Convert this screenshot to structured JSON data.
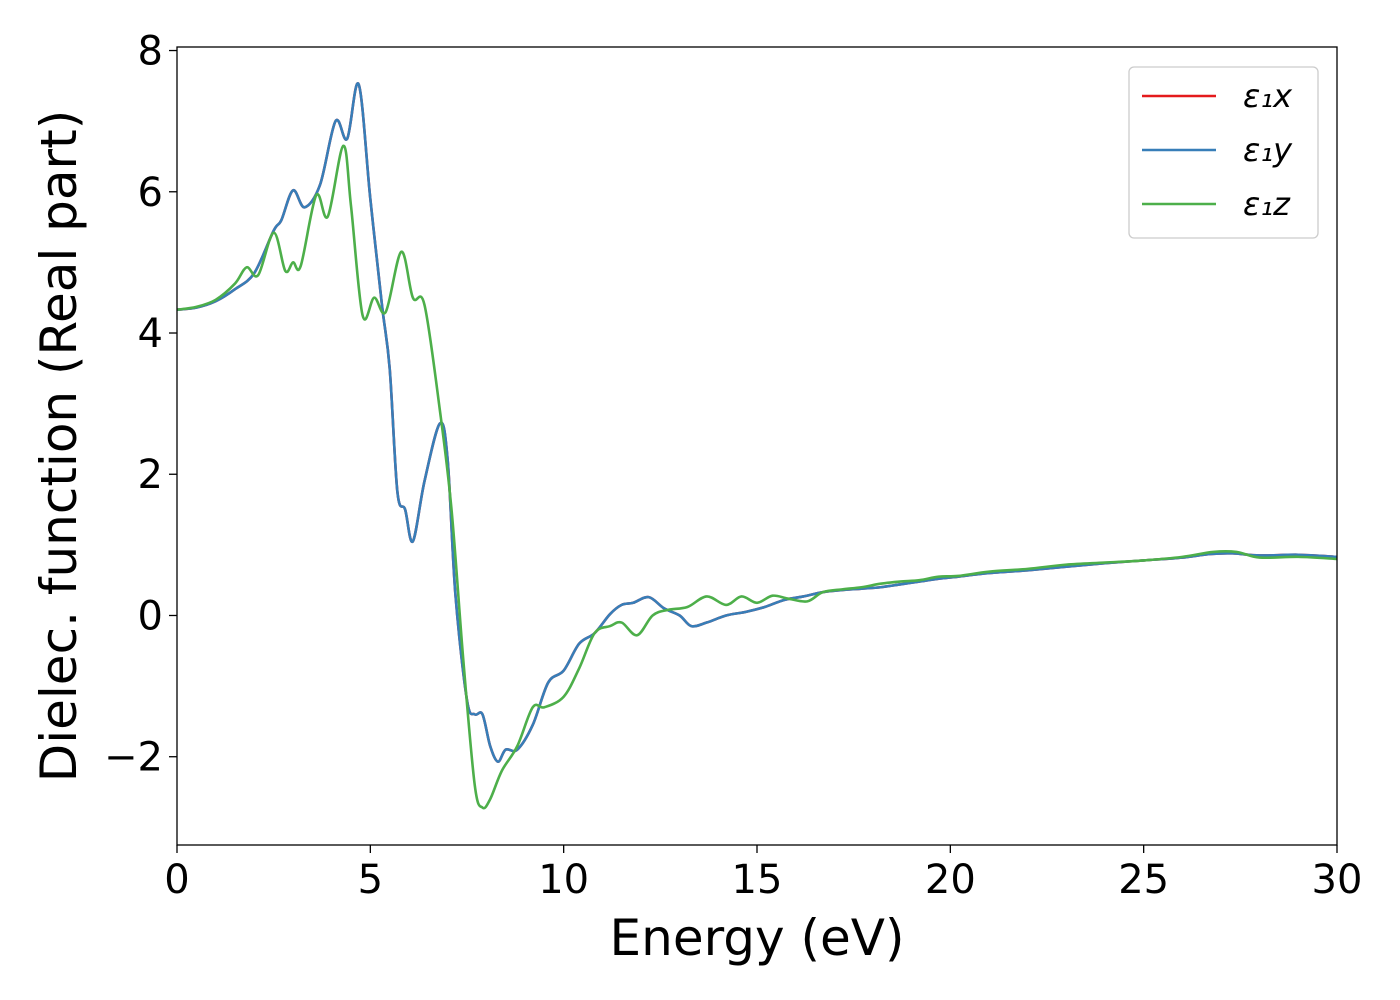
{
  "chart_data": {
    "type": "line",
    "xlabel": "Energy (eV)",
    "ylabel": "Dielec. function (Real part)",
    "xlim": [
      0,
      30
    ],
    "ylim": [
      -3.25,
      8.05
    ],
    "grid": false,
    "legend_placement": "top-right",
    "x_ticks": [
      0,
      5,
      10,
      15,
      20,
      25,
      30
    ],
    "x_tick_labels": [
      "0",
      "5",
      "10",
      "15",
      "20",
      "25",
      "30"
    ],
    "y_ticks": [
      -2,
      0,
      2,
      4,
      6,
      8
    ],
    "y_tick_labels": [
      "−2",
      "0",
      "2",
      "4",
      "6",
      "8"
    ],
    "series": [
      {
        "name": "ε₁x",
        "color": "#e41a1c",
        "points": [
          [
            0,
            4.33
          ],
          [
            0.5,
            4.36
          ],
          [
            1,
            4.45
          ],
          [
            1.5,
            4.62
          ],
          [
            2,
            4.85
          ],
          [
            2.5,
            5.45
          ],
          [
            2.7,
            5.6
          ],
          [
            3,
            6.02
          ],
          [
            3.3,
            5.78
          ],
          [
            3.7,
            6.1
          ],
          [
            4.1,
            7.0
          ],
          [
            4.4,
            6.75
          ],
          [
            4.7,
            7.52
          ],
          [
            5,
            5.9
          ],
          [
            5.3,
            4.4
          ],
          [
            5.5,
            3.5
          ],
          [
            5.7,
            1.75
          ],
          [
            5.9,
            1.5
          ],
          [
            6.1,
            1.05
          ],
          [
            6.4,
            1.9
          ],
          [
            6.8,
            2.72
          ],
          [
            7,
            2.2
          ],
          [
            7.2,
            0.3
          ],
          [
            7.5,
            -1.2
          ],
          [
            7.7,
            -1.4
          ],
          [
            7.9,
            -1.4
          ],
          [
            8.1,
            -1.85
          ],
          [
            8.3,
            -2.07
          ],
          [
            8.5,
            -1.9
          ],
          [
            8.8,
            -1.9
          ],
          [
            9.2,
            -1.55
          ],
          [
            9.6,
            -0.95
          ],
          [
            10,
            -0.78
          ],
          [
            10.4,
            -0.4
          ],
          [
            10.8,
            -0.25
          ],
          [
            11.2,
            0.02
          ],
          [
            11.5,
            0.15
          ],
          [
            11.8,
            0.18
          ],
          [
            12.2,
            0.26
          ],
          [
            12.6,
            0.1
          ],
          [
            13,
            0.0
          ],
          [
            13.3,
            -0.15
          ],
          [
            13.7,
            -0.1
          ],
          [
            14.2,
            0.0
          ],
          [
            14.7,
            0.05
          ],
          [
            15.2,
            0.12
          ],
          [
            15.7,
            0.22
          ],
          [
            16.2,
            0.27
          ],
          [
            16.7,
            0.33
          ],
          [
            17.2,
            0.36
          ],
          [
            17.7,
            0.38
          ],
          [
            18.2,
            0.4
          ],
          [
            18.7,
            0.44
          ],
          [
            19.2,
            0.48
          ],
          [
            19.7,
            0.52
          ],
          [
            20.2,
            0.55
          ],
          [
            21,
            0.6
          ],
          [
            22,
            0.64
          ],
          [
            23,
            0.69
          ],
          [
            24,
            0.74
          ],
          [
            25,
            0.78
          ],
          [
            26,
            0.82
          ],
          [
            26.7,
            0.87
          ],
          [
            27.3,
            0.88
          ],
          [
            28,
            0.85
          ],
          [
            29,
            0.86
          ],
          [
            30,
            0.83
          ]
        ]
      },
      {
        "name": "ε₁y",
        "color": "#377eb8",
        "points": [
          [
            0,
            4.33
          ],
          [
            0.5,
            4.36
          ],
          [
            1,
            4.45
          ],
          [
            1.5,
            4.62
          ],
          [
            2,
            4.85
          ],
          [
            2.5,
            5.45
          ],
          [
            2.7,
            5.6
          ],
          [
            3,
            6.02
          ],
          [
            3.3,
            5.78
          ],
          [
            3.7,
            6.1
          ],
          [
            4.1,
            7.0
          ],
          [
            4.4,
            6.75
          ],
          [
            4.7,
            7.52
          ],
          [
            5,
            5.9
          ],
          [
            5.3,
            4.4
          ],
          [
            5.5,
            3.5
          ],
          [
            5.7,
            1.75
          ],
          [
            5.9,
            1.5
          ],
          [
            6.1,
            1.05
          ],
          [
            6.4,
            1.9
          ],
          [
            6.8,
            2.72
          ],
          [
            7,
            2.2
          ],
          [
            7.2,
            0.3
          ],
          [
            7.5,
            -1.2
          ],
          [
            7.7,
            -1.4
          ],
          [
            7.9,
            -1.4
          ],
          [
            8.1,
            -1.85
          ],
          [
            8.3,
            -2.07
          ],
          [
            8.5,
            -1.9
          ],
          [
            8.8,
            -1.9
          ],
          [
            9.2,
            -1.55
          ],
          [
            9.6,
            -0.95
          ],
          [
            10,
            -0.78
          ],
          [
            10.4,
            -0.4
          ],
          [
            10.8,
            -0.25
          ],
          [
            11.2,
            0.02
          ],
          [
            11.5,
            0.15
          ],
          [
            11.8,
            0.18
          ],
          [
            12.2,
            0.26
          ],
          [
            12.6,
            0.1
          ],
          [
            13,
            0.0
          ],
          [
            13.3,
            -0.15
          ],
          [
            13.7,
            -0.1
          ],
          [
            14.2,
            0.0
          ],
          [
            14.7,
            0.05
          ],
          [
            15.2,
            0.12
          ],
          [
            15.7,
            0.22
          ],
          [
            16.2,
            0.27
          ],
          [
            16.7,
            0.33
          ],
          [
            17.2,
            0.36
          ],
          [
            17.7,
            0.38
          ],
          [
            18.2,
            0.4
          ],
          [
            18.7,
            0.44
          ],
          [
            19.2,
            0.48
          ],
          [
            19.7,
            0.52
          ],
          [
            20.2,
            0.55
          ],
          [
            21,
            0.6
          ],
          [
            22,
            0.64
          ],
          [
            23,
            0.69
          ],
          [
            24,
            0.74
          ],
          [
            25,
            0.78
          ],
          [
            26,
            0.82
          ],
          [
            26.7,
            0.87
          ],
          [
            27.3,
            0.88
          ],
          [
            28,
            0.85
          ],
          [
            29,
            0.86
          ],
          [
            30,
            0.83
          ]
        ]
      },
      {
        "name": "ε₁z",
        "color": "#4daf4a",
        "points": [
          [
            0,
            4.33
          ],
          [
            0.5,
            4.37
          ],
          [
            1,
            4.47
          ],
          [
            1.5,
            4.7
          ],
          [
            1.8,
            4.93
          ],
          [
            2.1,
            4.82
          ],
          [
            2.5,
            5.42
          ],
          [
            2.8,
            4.88
          ],
          [
            3.0,
            5.0
          ],
          [
            3.2,
            4.95
          ],
          [
            3.6,
            5.95
          ],
          [
            3.9,
            5.65
          ],
          [
            4.3,
            6.65
          ],
          [
            4.5,
            5.8
          ],
          [
            4.8,
            4.25
          ],
          [
            5.1,
            4.5
          ],
          [
            5.4,
            4.3
          ],
          [
            5.8,
            5.15
          ],
          [
            6.1,
            4.5
          ],
          [
            6.4,
            4.4
          ],
          [
            6.8,
            2.9
          ],
          [
            7.1,
            1.5
          ],
          [
            7.4,
            -0.6
          ],
          [
            7.7,
            -2.4
          ],
          [
            7.9,
            -2.72
          ],
          [
            8.1,
            -2.6
          ],
          [
            8.4,
            -2.2
          ],
          [
            8.8,
            -1.85
          ],
          [
            9.2,
            -1.3
          ],
          [
            9.5,
            -1.3
          ],
          [
            10,
            -1.15
          ],
          [
            10.4,
            -0.75
          ],
          [
            10.8,
            -0.25
          ],
          [
            11.2,
            -0.15
          ],
          [
            11.5,
            -0.1
          ],
          [
            11.9,
            -0.28
          ],
          [
            12.3,
            0.0
          ],
          [
            12.7,
            0.08
          ],
          [
            13.2,
            0.12
          ],
          [
            13.7,
            0.27
          ],
          [
            14.2,
            0.15
          ],
          [
            14.6,
            0.27
          ],
          [
            15,
            0.18
          ],
          [
            15.4,
            0.28
          ],
          [
            15.8,
            0.24
          ],
          [
            16.3,
            0.2
          ],
          [
            16.7,
            0.33
          ],
          [
            17.2,
            0.37
          ],
          [
            17.7,
            0.4
          ],
          [
            18.2,
            0.45
          ],
          [
            18.7,
            0.48
          ],
          [
            19.2,
            0.5
          ],
          [
            19.7,
            0.55
          ],
          [
            20.2,
            0.56
          ],
          [
            21,
            0.62
          ],
          [
            22,
            0.66
          ],
          [
            23,
            0.72
          ],
          [
            24,
            0.75
          ],
          [
            25,
            0.78
          ],
          [
            26,
            0.83
          ],
          [
            26.8,
            0.9
          ],
          [
            27.4,
            0.9
          ],
          [
            28,
            0.82
          ],
          [
            29,
            0.83
          ],
          [
            30,
            0.8
          ]
        ]
      }
    ]
  }
}
